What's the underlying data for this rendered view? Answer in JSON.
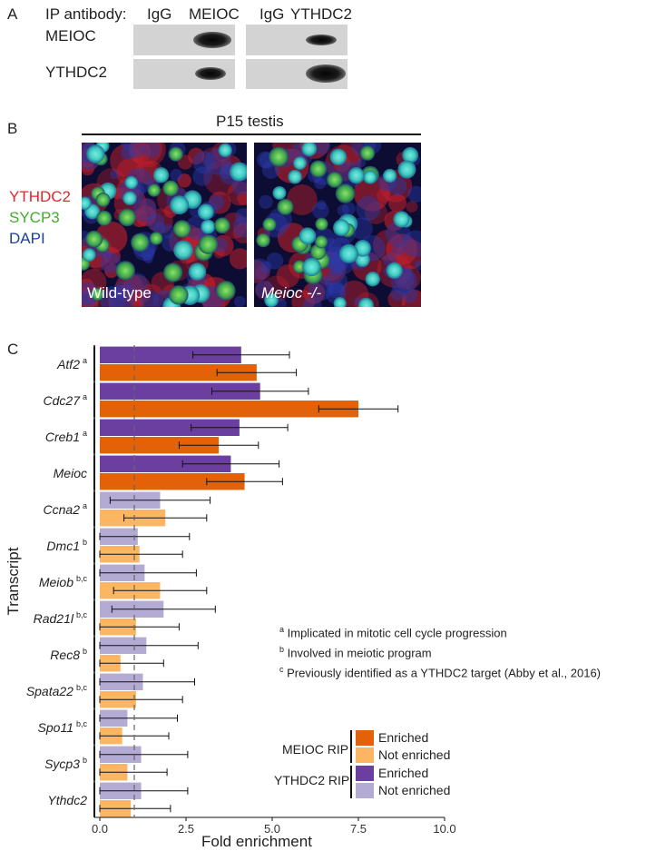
{
  "panel_a": {
    "letter": "A",
    "ip_label": "IP antibody:",
    "lanes": [
      "IgG",
      "MEIOC",
      "IgG",
      "YTHDC2"
    ],
    "rows": [
      "MEIOC",
      "YTHDC2"
    ]
  },
  "panel_b": {
    "letter": "B",
    "title": "P15 testis",
    "stains": [
      {
        "name": "YTHDC2",
        "color": "#e8242b"
      },
      {
        "name": "SYCP3",
        "color": "#3fae2a"
      },
      {
        "name": "DAPI",
        "color": "#1d3f9e"
      }
    ],
    "images": [
      {
        "label": "Wild-type",
        "italic": false
      },
      {
        "label": "Meioc -/-",
        "italic": true
      }
    ]
  },
  "chart_data": {
    "panel_letter": "C",
    "type": "bar",
    "orientation": "horizontal",
    "xlabel": "Fold enrichment",
    "ylabel": "Transcript",
    "xlim": [
      0,
      10
    ],
    "xticks": [
      "0.0",
      "2.5",
      "5.0",
      "7.5",
      "10.0"
    ],
    "reference_line": 1.0,
    "colors": {
      "meioc_enriched": "#e36209",
      "meioc_not_enriched": "#fbb563",
      "ythdc2_enriched": "#6a3fa0",
      "ythdc2_not_enriched": "#b3abd3"
    },
    "transcripts": [
      {
        "name": "Atf2",
        "sup": "a",
        "ythdc2": {
          "value": 4.1,
          "err": 1.4,
          "enriched": true
        },
        "meioc": {
          "value": 4.55,
          "err": 1.15,
          "enriched": true
        }
      },
      {
        "name": "Cdc27",
        "sup": "a",
        "ythdc2": {
          "value": 4.65,
          "err": 1.4,
          "enriched": true
        },
        "meioc": {
          "value": 7.5,
          "err": 1.15,
          "enriched": true
        }
      },
      {
        "name": "Creb1",
        "sup": "a",
        "ythdc2": {
          "value": 4.05,
          "err": 1.4,
          "enriched": true
        },
        "meioc": {
          "value": 3.45,
          "err": 1.15,
          "enriched": true
        }
      },
      {
        "name": "Meioc",
        "sup": "",
        "ythdc2": {
          "value": 3.8,
          "err": 1.4,
          "enriched": true
        },
        "meioc": {
          "value": 4.2,
          "err": 1.1,
          "enriched": true
        }
      },
      {
        "name": "Ccna2",
        "sup": "a",
        "ythdc2": {
          "value": 1.75,
          "err": 1.45,
          "enriched": false
        },
        "meioc": {
          "value": 1.9,
          "err": 1.2,
          "enriched": false
        }
      },
      {
        "name": "Dmc1",
        "sup": "b",
        "ythdc2": {
          "value": 1.1,
          "err": 1.5,
          "enriched": false
        },
        "meioc": {
          "value": 1.15,
          "err": 1.25,
          "enriched": false
        }
      },
      {
        "name": "Meiob",
        "sup": "b,c",
        "ythdc2": {
          "value": 1.3,
          "err": 1.5,
          "enriched": false
        },
        "meioc": {
          "value": 1.75,
          "err": 1.35,
          "enriched": false
        }
      },
      {
        "name": "Rad21l",
        "sup": "b,c",
        "ythdc2": {
          "value": 1.85,
          "err": 1.5,
          "enriched": false
        },
        "meioc": {
          "value": 1.05,
          "err": 1.25,
          "enriched": false
        }
      },
      {
        "name": "Rec8",
        "sup": "b",
        "ythdc2": {
          "value": 1.35,
          "err": 1.5,
          "enriched": false
        },
        "meioc": {
          "value": 0.6,
          "err": 1.25,
          "enriched": false
        }
      },
      {
        "name": "Spata22",
        "sup": "b,c",
        "ythdc2": {
          "value": 1.25,
          "err": 1.5,
          "enriched": false
        },
        "meioc": {
          "value": 1.05,
          "err": 1.35,
          "enriched": false
        }
      },
      {
        "name": "Spo11",
        "sup": "b,c",
        "ythdc2": {
          "value": 0.8,
          "err": 1.45,
          "enriched": false
        },
        "meioc": {
          "value": 0.65,
          "err": 1.35,
          "enriched": false
        }
      },
      {
        "name": "Sycp3",
        "sup": "b",
        "ythdc2": {
          "value": 1.2,
          "err": 1.35,
          "enriched": false
        },
        "meioc": {
          "value": 0.8,
          "err": 1.15,
          "enriched": false
        }
      },
      {
        "name": "Ythdc2",
        "sup": "",
        "ythdc2": {
          "value": 1.2,
          "err": 1.35,
          "enriched": false
        },
        "meioc": {
          "value": 0.9,
          "err": 1.15,
          "enriched": false
        }
      }
    ],
    "footnotes": [
      {
        "sup": "a",
        "text": "Implicated in mitotic cell cycle progression"
      },
      {
        "sup": "b",
        "text": "Involved in meiotic program"
      },
      {
        "sup": "c",
        "text": "Previously identified as a YTHDC2 target (Abby et al., 2016)"
      }
    ],
    "legend": {
      "placement": "bottom-right",
      "groups": [
        {
          "title": "MEIOC RIP",
          "items": [
            {
              "label": "Enriched",
              "color": "#e36209"
            },
            {
              "label": "Not enriched",
              "color": "#fbb563"
            }
          ]
        },
        {
          "title": "YTHDC2 RIP",
          "items": [
            {
              "label": "Enriched",
              "color": "#6a3fa0"
            },
            {
              "label": "Not enriched",
              "color": "#b3abd3"
            }
          ]
        }
      ]
    }
  }
}
